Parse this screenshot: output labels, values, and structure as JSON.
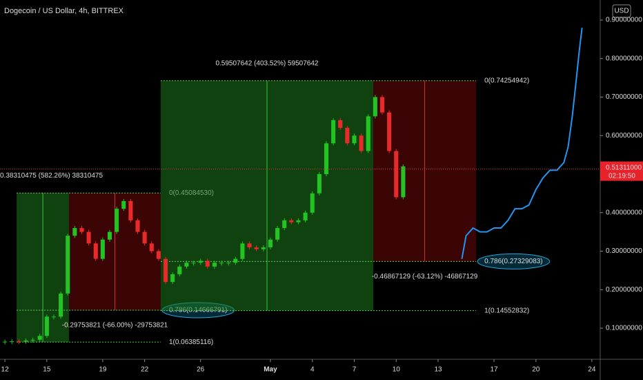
{
  "chart_data": {
    "type": "candlestick",
    "title": "Dogecoin / US Dollar, 4h, BITTREX",
    "currency": "USD",
    "up_color": "#22c322",
    "down_color": "#e82a2a",
    "x": [
      0,
      0.5,
      1,
      1.5,
      2,
      2.5,
      3,
      3.5,
      4,
      4.5,
      5,
      5.5,
      6,
      6.5,
      7,
      7.5,
      8,
      8.5,
      9,
      9.5,
      10,
      10.5,
      11,
      11.5,
      12,
      12.5,
      13,
      13.5,
      14,
      14.5,
      15,
      15.5,
      16,
      16.5,
      17,
      17.5,
      18,
      18.5,
      19,
      19.5,
      20,
      20.5,
      21,
      21.5,
      22,
      22.5,
      23,
      23.5,
      24,
      24.5,
      25,
      25.5,
      26,
      26.5,
      27,
      27.5,
      28,
      28.5
    ],
    "values": [
      0.065,
      0.066,
      0.065,
      0.068,
      0.07,
      0.08,
      0.13,
      0.13,
      0.19,
      0.34,
      0.36,
      0.35,
      0.32,
      0.28,
      0.33,
      0.35,
      0.41,
      0.43,
      0.38,
      0.35,
      0.32,
      0.3,
      0.28,
      0.22,
      0.24,
      0.26,
      0.27,
      0.27,
      0.275,
      0.26,
      0.27,
      0.27,
      0.27,
      0.28,
      0.32,
      0.31,
      0.305,
      0.31,
      0.33,
      0.36,
      0.38,
      0.375,
      0.38,
      0.4,
      0.45,
      0.5,
      0.58,
      0.64,
      0.62,
      0.58,
      0.6,
      0.56,
      0.65,
      0.7,
      0.66,
      0.56,
      0.44,
      0.52
    ],
    "projection": {
      "color": "#2196f3",
      "x": [
        32.7,
        33,
        33.5,
        34,
        34.5,
        35,
        35.5,
        36,
        36.5,
        37,
        37.5,
        38,
        38.5,
        39,
        39.5,
        40,
        40.3,
        40.6,
        40.9,
        41.1,
        41.3
      ],
      "values": [
        0.28,
        0.34,
        0.36,
        0.35,
        0.35,
        0.36,
        0.36,
        0.38,
        0.41,
        0.41,
        0.42,
        0.46,
        0.49,
        0.51,
        0.51,
        0.53,
        0.57,
        0.65,
        0.75,
        0.82,
        0.88
      ]
    },
    "xlim": [
      -0.35,
      42.6
    ],
    "xticks": [
      {
        "value": 0,
        "label": "12"
      },
      {
        "value": 3,
        "label": "15"
      },
      {
        "value": 7,
        "label": "19"
      },
      {
        "value": 10,
        "label": "22"
      },
      {
        "value": 14,
        "label": "26"
      },
      {
        "value": 19,
        "label": "May"
      },
      {
        "value": 22,
        "label": "4"
      },
      {
        "value": 25,
        "label": "7"
      },
      {
        "value": 28,
        "label": "10"
      },
      {
        "value": 31,
        "label": "13"
      },
      {
        "value": 35,
        "label": "17"
      },
      {
        "value": 38,
        "label": "20"
      },
      {
        "value": 42,
        "label": "24"
      }
    ],
    "ylim": [
      0.0193,
      0.952
    ],
    "yticks": [
      {
        "value": 0.1,
        "label": "0.10000000"
      },
      {
        "value": 0.2,
        "label": "0.20000000"
      },
      {
        "value": 0.3,
        "label": "0.30000000"
      },
      {
        "value": 0.4,
        "label": "0.40000000"
      },
      {
        "value": 0.5,
        "label": "0.50000000"
      },
      {
        "value": 0.6,
        "label": "0.60000000"
      },
      {
        "value": 0.7,
        "label": "0.70000000"
      },
      {
        "value": 0.8,
        "label": "0.80000000"
      },
      {
        "value": 0.9,
        "label": "0.90000000"
      }
    ],
    "last_price": {
      "value": 0.51311,
      "label": "0.51311000",
      "countdown": "02:19:50"
    },
    "fibs": [
      {
        "x": [
          0.84,
          4.59,
          11.15
        ],
        "level_0": {
          "value": 0.4508453,
          "label": "0(0.45084530)"
        },
        "level_1": {
          "value": 0.06385116,
          "label": "1(0.06385116)"
        },
        "level_786": {
          "value": 0.14666791,
          "label": "0.786(0.14666791)"
        },
        "gain_label": "0.38310475 (582.26%) 38310475",
        "loss_label": "-0.29753821 (-66.00%) -29753821"
      },
      {
        "x": [
          11.15,
          26.36,
          33.72
        ],
        "level_0": {
          "value": 0.74254942,
          "label": "0(0.74254942)"
        },
        "level_1": {
          "value": 0.14552832,
          "label": "1(0.14552832)"
        },
        "level_786": {
          "value": 0.27329083,
          "label": "0.786(0.27329083)"
        },
        "gain_label": "0.59507642 (403.52%) 59507642",
        "loss_label": "-0.46867129 (-63.12%) -46867129"
      }
    ]
  }
}
